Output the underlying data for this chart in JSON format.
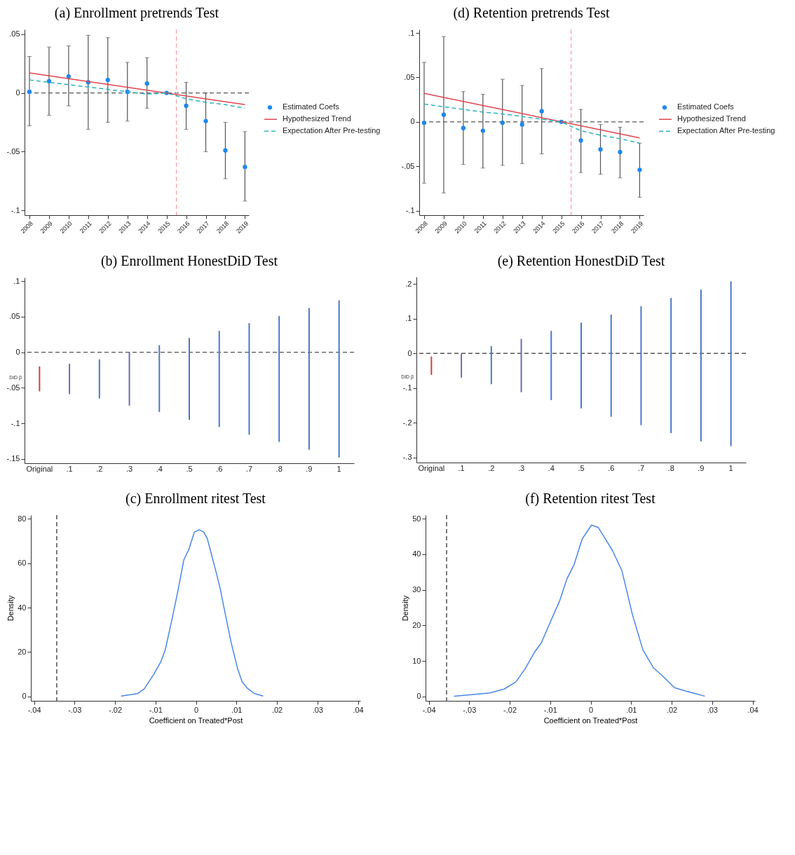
{
  "chart_data": [
    {
      "type": "scatter",
      "title": "(a) Enrollment pretrends Test",
      "x": [
        2008,
        2009,
        2010,
        2011,
        2012,
        2013,
        2014,
        2015,
        2016,
        2017,
        2018,
        2019
      ],
      "xlim": [
        2007.75,
        2019.2
      ],
      "xticks": [
        2008,
        2009,
        2010,
        2011,
        2012,
        2013,
        2014,
        2015,
        2016,
        2017,
        2018,
        2019
      ],
      "ylim": [
        -0.104,
        0.054
      ],
      "yticks": [
        {
          "value": -0.1,
          "label": "-.1"
        },
        {
          "value": -0.05,
          "label": "-.05"
        },
        0,
        {
          "value": 0.05,
          "label": ".05"
        }
      ],
      "legend": "right",
      "series": [
        {
          "name": "Estimated Coefs",
          "marker": "circle",
          "color": "#1e88f0",
          "values": [
            0.001,
            0.01,
            0.014,
            0.009,
            0.011,
            0.001,
            0.008,
            0,
            -0.011,
            -0.024,
            -0.049,
            -0.063
          ],
          "errors": [
            [
              -0.028,
              0.031
            ],
            [
              -0.019,
              0.039
            ],
            [
              -0.011,
              0.04
            ],
            [
              -0.031,
              0.049
            ],
            [
              -0.025,
              0.047
            ],
            [
              -0.024,
              0.026
            ],
            [
              -0.013,
              0.03
            ],
            null,
            [
              -0.031,
              0.009
            ],
            [
              -0.05,
              0
            ],
            [
              -0.073,
              -0.025
            ],
            [
              -0.092,
              -0.033
            ]
          ]
        },
        {
          "name": "Hypothesized Trend",
          "type": "line",
          "color": "#e0454f",
          "x": [
            2008,
            2019
          ],
          "values": [
            0.017,
            -0.01
          ]
        },
        {
          "name": "Expectation After Pre-testing",
          "type": "line",
          "line_style": "dashed",
          "color": "#2bb3c0",
          "values": [
            0.011,
            0.009,
            0.007,
            0.005,
            0.003,
            0.001,
            -0.001,
            0,
            -0.005,
            -0.008,
            -0.01,
            -0.013
          ]
        }
      ],
      "ref_lines": [
        {
          "axis": "y",
          "value": 0,
          "color": "#555555",
          "line_style": "dashed"
        },
        {
          "axis": "x",
          "value": 2015.5,
          "color": "#f4a0aa",
          "line_style": "dashed"
        }
      ]
    },
    {
      "type": "scatter",
      "title": "(d) Retention pretrends Test",
      "x": [
        2008,
        2009,
        2010,
        2011,
        2012,
        2013,
        2014,
        2015,
        2016,
        2017,
        2018,
        2019
      ],
      "xlim": [
        2007.75,
        2019.2
      ],
      "xticks": [
        2008,
        2009,
        2010,
        2011,
        2012,
        2013,
        2014,
        2015,
        2016,
        2017,
        2018,
        2019
      ],
      "ylim": [
        -0.105,
        0.104
      ],
      "yticks": [
        {
          "value": -0.1,
          "label": "-.1"
        },
        {
          "value": -0.05,
          "label": "-.05"
        },
        0,
        {
          "value": 0.05,
          "label": ".05"
        },
        {
          "value": 0.1,
          "label": ".1"
        }
      ],
      "legend": "right",
      "series": [
        {
          "name": "Estimated Coefs",
          "marker": "circle",
          "color": "#1e88f0",
          "values": [
            -0.001,
            0.008,
            -0.007,
            -0.01,
            -0.001,
            -0.003,
            0.012,
            0,
            -0.021,
            -0.031,
            -0.034,
            -0.054
          ],
          "errors": [
            [
              -0.069,
              0.067
            ],
            [
              -0.08,
              0.096
            ],
            [
              -0.048,
              0.034
            ],
            [
              -0.052,
              0.031
            ],
            [
              -0.049,
              0.048
            ],
            [
              -0.047,
              0.041
            ],
            [
              -0.036,
              0.06
            ],
            null,
            [
              -0.057,
              0.014
            ],
            [
              -0.059,
              -0.003
            ],
            [
              -0.063,
              -0.006
            ],
            [
              -0.085,
              -0.024
            ]
          ]
        },
        {
          "name": "Hypothesized Trend",
          "type": "line",
          "color": "#e0454f",
          "x": [
            2008,
            2019
          ],
          "values": [
            0.032,
            -0.018
          ]
        },
        {
          "name": "Expectation After Pre-testing",
          "type": "line",
          "line_style": "dashed",
          "color": "#2bb3c0",
          "values": [
            0.02,
            0.017,
            0.014,
            0.011,
            0.009,
            0.006,
            0.003,
            0,
            -0.01,
            -0.015,
            -0.019,
            -0.024
          ]
        }
      ],
      "ref_lines": [
        {
          "axis": "y",
          "value": 0,
          "color": "#555555",
          "line_style": "dashed"
        },
        {
          "axis": "x",
          "value": 2015.5,
          "color": "#f4a0aa",
          "line_style": "dashed"
        }
      ]
    },
    {
      "type": "bar",
      "title": "(b) Enrollment HonestDiD Test",
      "categories": [
        "Original",
        ".1",
        ".2",
        ".3",
        ".4",
        ".5",
        ".6",
        ".7",
        ".8",
        ".9",
        "1"
      ],
      "ylim": [
        -0.156,
        0.105
      ],
      "yticks": [
        {
          "value": -0.15,
          "label": "-.15"
        },
        {
          "value": -0.1,
          "label": "-.1"
        },
        {
          "value": -0.05,
          "label": "-.05"
        },
        0,
        {
          "value": 0.05,
          "label": ".05"
        },
        {
          "value": 0.1,
          "label": ".1"
        }
      ],
      "base": [
        -0.055,
        -0.059,
        -0.065,
        -0.075,
        -0.084,
        -0.095,
        -0.105,
        -0.116,
        -0.126,
        -0.137,
        -0.148
      ],
      "values": [
        0.035,
        0.043,
        0.055,
        0.075,
        0.094,
        0.115,
        0.135,
        0.157,
        0.177,
        0.199,
        0.221
      ],
      "colors": [
        "#d43d3d",
        "#7868b0",
        "#4a78c8",
        "#6a6ab8",
        "#4a78c8",
        "#4a78c8",
        "#4a78c8",
        "#4a78c8",
        "#4a78c8",
        "#4a78c8",
        "#4a78c8"
      ],
      "ref_lines": [
        {
          "axis": "y",
          "value": 0,
          "color": "#555555",
          "line_style": "dashed"
        }
      ],
      "annotations": [
        "DiD β"
      ]
    },
    {
      "type": "bar",
      "title": "(e) Retention HonestDiD Test",
      "categories": [
        "Original",
        ".1",
        ".2",
        ".3",
        ".4",
        ".5",
        ".6",
        ".7",
        ".8",
        ".9",
        "1"
      ],
      "ylim": [
        -0.315,
        0.221
      ],
      "yticks": [
        {
          "value": -0.3,
          "label": "-.3"
        },
        {
          "value": -0.2,
          "label": "-.2"
        },
        {
          "value": -0.1,
          "label": "-.1"
        },
        0,
        {
          "value": 0.1,
          "label": ".1"
        },
        {
          "value": 0.2,
          "label": ".2"
        }
      ],
      "base": [
        -0.062,
        -0.07,
        -0.089,
        -0.112,
        -0.135,
        -0.159,
        -0.183,
        -0.207,
        -0.23,
        -0.254,
        -0.268
      ],
      "values": [
        0.053,
        0.069,
        0.11,
        0.154,
        0.2,
        0.248,
        0.295,
        0.343,
        0.39,
        0.438,
        0.476
      ],
      "colors": [
        "#d43d3d",
        "#7868b0",
        "#4a78c8",
        "#6a6ab8",
        "#4a78c8",
        "#4a78c8",
        "#4a78c8",
        "#4a78c8",
        "#4a78c8",
        "#4a78c8",
        "#4a78c8"
      ],
      "ref_lines": [
        {
          "axis": "y",
          "value": 0,
          "color": "#555555",
          "line_style": "dashed"
        }
      ],
      "annotations": [
        "DiD β"
      ]
    },
    {
      "type": "line",
      "title": "(c) Enrollment ritest Test",
      "xlabel": "Coefficient on Treated*Post",
      "ylabel": "Density",
      "xlim": [
        -0.0408,
        0.0406
      ],
      "xticks": [
        {
          "value": -0.04,
          "label": "-.04"
        },
        {
          "value": -0.03,
          "label": "-.03"
        },
        {
          "value": -0.02,
          "label": "-.02"
        },
        {
          "value": -0.01,
          "label": "-.01"
        },
        0,
        {
          "value": 0.01,
          "label": ".01"
        },
        {
          "value": 0.02,
          "label": ".02"
        },
        {
          "value": 0.03,
          "label": ".03"
        },
        {
          "value": 0.04,
          "label": ".04"
        }
      ],
      "ylim": [
        -1.9,
        81.6
      ],
      "yticks": [
        0,
        20,
        40,
        60,
        80
      ],
      "series": [
        {
          "color": "#4a86e8",
          "x": [
            -0.0185,
            -0.0145,
            -0.0128,
            -0.0105,
            -0.0087,
            -0.0076,
            -0.0059,
            -0.0047,
            -0.0041,
            -0.003,
            -0.0018,
            -0.0004,
            0.0008,
            0.0019,
            0.0028,
            0.0039,
            0.0051,
            0.006,
            0.0068,
            0.0086,
            0.0103,
            0.0114,
            0.0126,
            0.0143,
            0.0166
          ],
          "values": [
            0.2,
            1.3,
            3.4,
            9.8,
            15.6,
            21,
            35,
            45.5,
            51,
            61.5,
            66,
            74,
            75,
            74,
            71,
            63.4,
            55,
            48.4,
            41,
            25,
            12.4,
            6.6,
            3.9,
            1.5,
            0.2
          ]
        }
      ],
      "ref_lines": [
        {
          "axis": "x",
          "value": -0.0344,
          "color": "#333333",
          "line_style": "dashed"
        }
      ]
    },
    {
      "type": "line",
      "title": "(f) Retention ritest Test",
      "xlabel": "Coefficient on Treated*Post",
      "ylabel": "Density",
      "xlim": [
        -0.0408,
        0.0406
      ],
      "xticks": [
        {
          "value": -0.04,
          "label": "-.04"
        },
        {
          "value": -0.03,
          "label": "-.03"
        },
        {
          "value": -0.02,
          "label": "-.02"
        },
        {
          "value": -0.01,
          "label": "-.01"
        },
        0,
        {
          "value": 0.01,
          "label": ".01"
        },
        {
          "value": 0.02,
          "label": ".02"
        },
        {
          "value": 0.03,
          "label": ".03"
        },
        {
          "value": 0.04,
          "label": ".04"
        }
      ],
      "ylim": [
        -1.2,
        51
      ],
      "yticks": [
        0,
        10,
        20,
        30,
        40,
        50
      ],
      "series": [
        {
          "color": "#4a86e8",
          "x": [
            -0.0338,
            -0.0295,
            -0.0249,
            -0.0214,
            -0.0185,
            -0.0162,
            -0.0139,
            -0.0122,
            -0.0099,
            -0.0076,
            -0.0059,
            -0.0041,
            -0.0021,
            0.0002,
            0.0019,
            0.0054,
            0.0077,
            0.0103,
            0.0129,
            0.0155,
            0.0184,
            0.0207,
            0.0236,
            0.0259,
            0.0282
          ],
          "values": [
            0.1,
            0.5,
            1.0,
            2.1,
            4.1,
            7.8,
            12.4,
            15.1,
            21.1,
            27.1,
            33.0,
            37.1,
            44.3,
            48.2,
            47.5,
            41.0,
            35.4,
            23.1,
            13.1,
            8.1,
            5.1,
            2.5,
            1.5,
            0.8,
            0.1
          ]
        }
      ],
      "ref_lines": [
        {
          "axis": "x",
          "value": -0.0356,
          "color": "#333333",
          "line_style": "dashed"
        }
      ]
    }
  ]
}
